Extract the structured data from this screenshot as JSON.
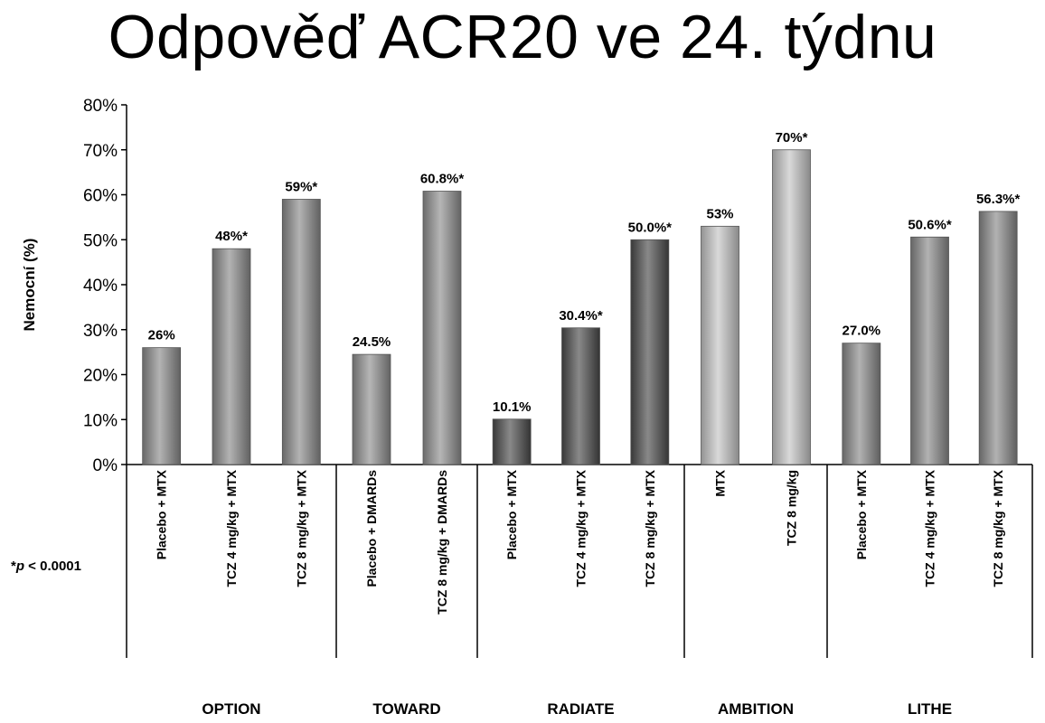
{
  "chart_data": {
    "type": "bar",
    "title": "Odpověď ACR20 ve 24. týdnu",
    "ylabel": "Nemocní (%)",
    "xlabel": "",
    "ylim": [
      0,
      80
    ],
    "y_ticks": [
      "0%",
      "10%",
      "20%",
      "30%",
      "40%",
      "50%",
      "60%",
      "70%",
      "80%"
    ],
    "footnote_prefix": "*",
    "footnote_italic": "p",
    "footnote_rest": " < 0.0001",
    "groups": [
      {
        "name": "OPTION",
        "color": "#8a8a8a",
        "bars": [
          {
            "category": "Placebo + MTX",
            "value": 26,
            "label": "26%"
          },
          {
            "category": "TCZ 4 mg/kg + MTX",
            "value": 48,
            "label": "48%*"
          },
          {
            "category": "TCZ 8 mg/kg + MTX",
            "value": 59,
            "label": "59%*"
          }
        ]
      },
      {
        "name": "TOWARD",
        "color": "#8e8e8e",
        "bars": [
          {
            "category": "Placebo + DMARDs",
            "value": 24.5,
            "label": "24.5%"
          },
          {
            "category": "TCZ 8 mg/kg + DMARDs",
            "value": 60.8,
            "label": "60.8%*"
          }
        ]
      },
      {
        "name": "RADIATE",
        "color": "#4a4a4a",
        "bars": [
          {
            "category": "Placebo + MTX",
            "value": 10.1,
            "label": "10.1%"
          },
          {
            "category": "TCZ 4 mg/kg + MTX",
            "value": 30.4,
            "label": "30.4%*"
          },
          {
            "category": "TCZ 8 mg/kg + MTX",
            "value": 50.0,
            "label": "50.0%*"
          }
        ]
      },
      {
        "name": "AMBITION",
        "color": "#c4c4c4",
        "bars": [
          {
            "category": "MTX",
            "value": 53,
            "label": "53%"
          },
          {
            "category": "TCZ 8 mg/kg",
            "value": 70,
            "label": "70%*"
          }
        ]
      },
      {
        "name": "LITHE",
        "color": "#888888",
        "bars": [
          {
            "category": "Placebo + MTX",
            "value": 27.0,
            "label": "27.0%"
          },
          {
            "category": "TCZ 4 mg/kg + MTX",
            "value": 50.6,
            "label": "50.6%*"
          },
          {
            "category": "TCZ 8 mg/kg + MTX",
            "value": 56.3,
            "label": "56.3%*"
          }
        ]
      }
    ],
    "legend": "none",
    "grid": false
  }
}
